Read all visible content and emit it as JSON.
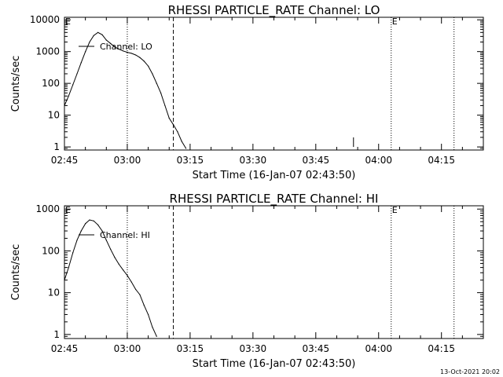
{
  "footer": {
    "date_stamp": "13-Oct-2021 20:02"
  },
  "chart_data": [
    {
      "type": "line",
      "title": "RHESSI PARTICLE_RATE Channel: LO",
      "xlabel": "Start Time (16-Jan-07 02:43:50)",
      "ylabel": "Counts/sec",
      "y_scale": "log",
      "xlim": [
        "02:45",
        "04:25"
      ],
      "ylim": [
        0.8,
        12000
      ],
      "x_ticks": [
        "02:45",
        "03:00",
        "03:15",
        "03:30",
        "03:45",
        "04:00",
        "04:15"
      ],
      "y_ticks": [
        "1",
        "10",
        "100",
        "1000",
        "10000"
      ],
      "grid": false,
      "series": [
        {
          "name": "Channel: LO",
          "x": [
            "02:45",
            "02:46",
            "02:47",
            "02:48",
            "02:49",
            "02:50",
            "02:51",
            "02:52",
            "02:53",
            "02:54",
            "02:55",
            "02:56",
            "02:57",
            "02:58",
            "02:59",
            "03:00",
            "03:01",
            "03:02",
            "03:03",
            "03:04",
            "03:05",
            "03:06",
            "03:07",
            "03:08",
            "03:09",
            "03:10",
            "03:11",
            "03:12",
            "03:13",
            "03:14"
          ],
          "values": [
            20,
            40,
            90,
            200,
            450,
            1000,
            2000,
            3200,
            4000,
            3400,
            2300,
            1800,
            1400,
            1200,
            1050,
            950,
            880,
            780,
            650,
            500,
            350,
            200,
            100,
            50,
            20,
            8,
            5,
            3,
            1.5,
            0.9
          ]
        }
      ],
      "extra_points": [
        {
          "x": "03:54",
          "values": [
            1,
            2,
            1
          ]
        }
      ],
      "vlines": [
        {
          "x": "03:00",
          "style": "dotted"
        },
        {
          "x": "03:11",
          "style": "dashed"
        },
        {
          "x": "04:03",
          "style": "dotted"
        },
        {
          "x": "04:18",
          "style": "dotted"
        }
      ],
      "markers": [
        {
          "label": "E",
          "x": "02:45"
        },
        {
          "label": "E",
          "x": "04:03"
        }
      ],
      "legend": "top-left"
    },
    {
      "type": "line",
      "title": "RHESSI PARTICLE_RATE Channel: HI",
      "xlabel": "Start Time (16-Jan-07 02:43:50)",
      "ylabel": "Counts/sec",
      "y_scale": "log",
      "xlim": [
        "02:45",
        "04:25"
      ],
      "ylim": [
        0.8,
        1200
      ],
      "x_ticks": [
        "02:45",
        "03:00",
        "03:15",
        "03:30",
        "03:45",
        "04:00",
        "04:15"
      ],
      "y_ticks": [
        "1",
        "10",
        "100",
        "1000"
      ],
      "grid": false,
      "series": [
        {
          "name": "Channel: HI",
          "x": [
            "02:45",
            "02:46",
            "02:47",
            "02:48",
            "02:49",
            "02:50",
            "02:51",
            "02:52",
            "02:53",
            "02:54",
            "02:55",
            "02:56",
            "02:57",
            "02:58",
            "02:59",
            "03:00",
            "03:01",
            "03:02",
            "03:03",
            "03:04",
            "03:05",
            "03:06",
            "03:07"
          ],
          "values": [
            20,
            40,
            90,
            180,
            300,
            450,
            550,
            520,
            420,
            300,
            180,
            110,
            70,
            48,
            35,
            26,
            18,
            12,
            9,
            5,
            3,
            1.5,
            0.9
          ]
        }
      ],
      "extra_points": [],
      "vlines": [
        {
          "x": "03:00",
          "style": "dotted"
        },
        {
          "x": "03:11",
          "style": "dashed"
        },
        {
          "x": "04:03",
          "style": "dotted"
        },
        {
          "x": "04:18",
          "style": "dotted"
        }
      ],
      "markers": [
        {
          "label": "E",
          "x": "02:45"
        },
        {
          "label": "E",
          "x": "04:03"
        }
      ],
      "legend": "top-left"
    }
  ]
}
